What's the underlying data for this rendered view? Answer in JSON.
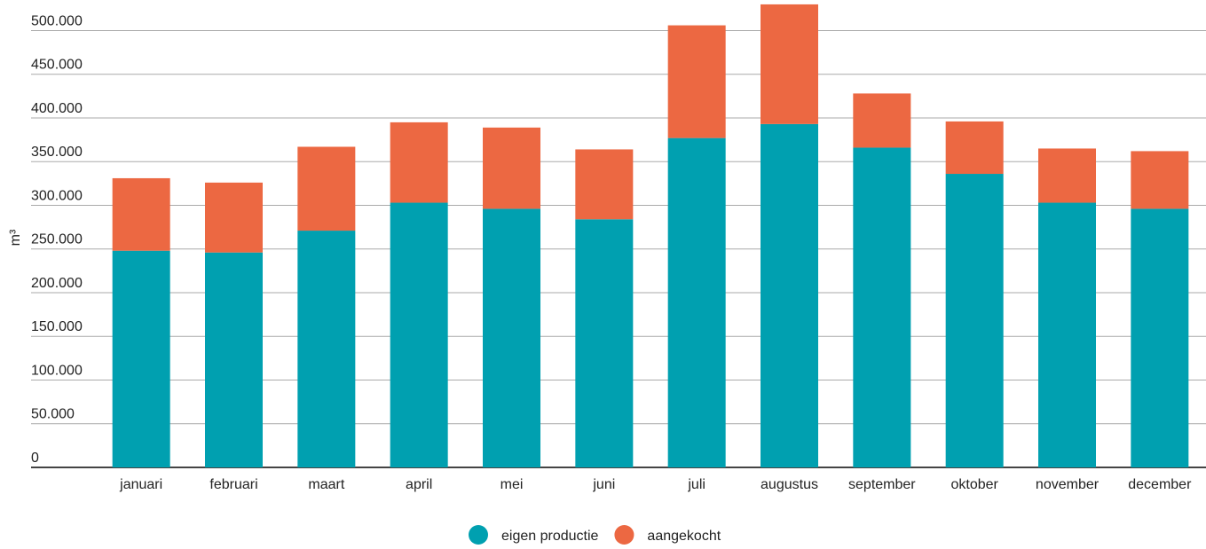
{
  "chart_data": {
    "type": "stacked-bar",
    "y_label": "m³",
    "categories": [
      "januari",
      "februari",
      "maart",
      "april",
      "mei",
      "juni",
      "juli",
      "augustus",
      "september",
      "oktober",
      "november",
      "december"
    ],
    "series": [
      {
        "name": "eigen productie",
        "color": "#00a0b0",
        "values": [
          248000,
          246000,
          271000,
          303000,
          296000,
          284000,
          377000,
          393000,
          366000,
          336000,
          303000,
          296000
        ]
      },
      {
        "name": "aangekocht",
        "color": "#ec6842",
        "values": [
          83000,
          80000,
          96000,
          92000,
          93000,
          80000,
          129000,
          137000,
          62000,
          60000,
          62000,
          66000
        ]
      }
    ],
    "ylim": [
      0,
      535000
    ],
    "yticks": [
      0,
      {
        "value": 50000,
        "label": "50.000"
      },
      {
        "value": 100000,
        "label": "100.000"
      },
      {
        "value": 150000,
        "label": "150.000"
      },
      {
        "value": 200000,
        "label": "200.000"
      },
      {
        "value": 250000,
        "label": "250.000"
      },
      {
        "value": 300000,
        "label": "300.000"
      },
      {
        "value": 350000,
        "label": "350.000"
      },
      {
        "value": 400000,
        "label": "400.000"
      },
      {
        "value": 450000,
        "label": "450.000"
      },
      {
        "value": 500000,
        "label": "500.000"
      }
    ],
    "grid": true
  }
}
